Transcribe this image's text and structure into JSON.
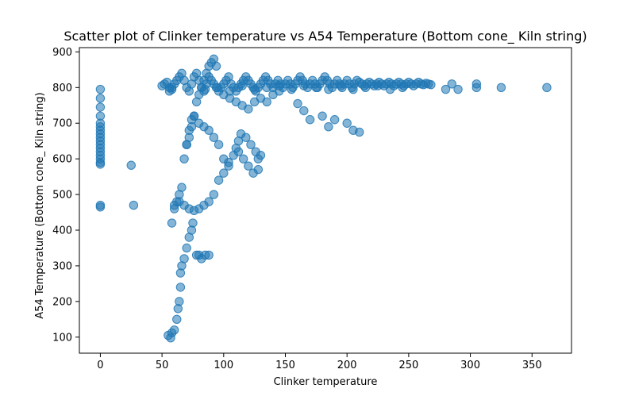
{
  "chart_data": {
    "type": "scatter",
    "title": "Scatter plot of Clinker temperature vs A54 Temperature (Bottom cone_ Kiln string)",
    "xlabel": "Clinker temperature",
    "ylabel": "A54 Temperature (Bottom cone_ Kiln string)",
    "xlim": [
      -17,
      382
    ],
    "ylim": [
      55,
      912
    ],
    "xticks": [
      0,
      50,
      100,
      150,
      200,
      250,
      300,
      350
    ],
    "yticks": [
      100,
      200,
      300,
      400,
      500,
      600,
      700,
      800,
      900
    ],
    "grid": false,
    "legend": "none",
    "marker_color": "#1f77b4",
    "marker_alpha": 0.55,
    "series": [
      {
        "points": [
          [
            0,
            465
          ],
          [
            0,
            470
          ],
          [
            0,
            585
          ],
          [
            0,
            590
          ],
          [
            0,
            600
          ],
          [
            0,
            610
          ],
          [
            0,
            620
          ],
          [
            0,
            630
          ],
          [
            0,
            640
          ],
          [
            0,
            650
          ],
          [
            0,
            660
          ],
          [
            0,
            670
          ],
          [
            0,
            680
          ],
          [
            0,
            690
          ],
          [
            0,
            700
          ],
          [
            0,
            720
          ],
          [
            0,
            745
          ],
          [
            0,
            770
          ],
          [
            0,
            795
          ],
          [
            25,
            582
          ],
          [
            27,
            470
          ],
          [
            55,
            105
          ],
          [
            57,
            98
          ],
          [
            58,
            112
          ],
          [
            60,
            120
          ],
          [
            62,
            150
          ],
          [
            63,
            180
          ],
          [
            64,
            200
          ],
          [
            65,
            240
          ],
          [
            65,
            280
          ],
          [
            66,
            300
          ],
          [
            68,
            320
          ],
          [
            70,
            350
          ],
          [
            72,
            380
          ],
          [
            74,
            400
          ],
          [
            75,
            420
          ],
          [
            78,
            330
          ],
          [
            80,
            330
          ],
          [
            82,
            320
          ],
          [
            85,
            330
          ],
          [
            88,
            330
          ],
          [
            58,
            420
          ],
          [
            60,
            460
          ],
          [
            62,
            480
          ],
          [
            64,
            500
          ],
          [
            66,
            520
          ],
          [
            68,
            600
          ],
          [
            70,
            640
          ],
          [
            72,
            680
          ],
          [
            74,
            710
          ],
          [
            76,
            720
          ],
          [
            80,
            700
          ],
          [
            84,
            690
          ],
          [
            88,
            680
          ],
          [
            92,
            660
          ],
          [
            96,
            640
          ],
          [
            100,
            600
          ],
          [
            104,
            590
          ],
          [
            60,
            470
          ],
          [
            64,
            480
          ],
          [
            68,
            470
          ],
          [
            72,
            460
          ],
          [
            76,
            455
          ],
          [
            80,
            460
          ],
          [
            84,
            470
          ],
          [
            88,
            480
          ],
          [
            92,
            500
          ],
          [
            96,
            540
          ],
          [
            100,
            560
          ],
          [
            104,
            580
          ],
          [
            108,
            610
          ],
          [
            112,
            620
          ],
          [
            116,
            600
          ],
          [
            120,
            580
          ],
          [
            124,
            560
          ],
          [
            128,
            570
          ],
          [
            130,
            610
          ],
          [
            110,
            630
          ],
          [
            112,
            650
          ],
          [
            114,
            670
          ],
          [
            118,
            660
          ],
          [
            122,
            640
          ],
          [
            126,
            620
          ],
          [
            128,
            600
          ],
          [
            70,
            640
          ],
          [
            72,
            660
          ],
          [
            74,
            690
          ],
          [
            76,
            720
          ],
          [
            78,
            760
          ],
          [
            80,
            780
          ],
          [
            82,
            800
          ],
          [
            84,
            820
          ],
          [
            86,
            840
          ],
          [
            88,
            860
          ],
          [
            90,
            870
          ],
          [
            92,
            880
          ],
          [
            94,
            860
          ],
          [
            56,
            790
          ],
          [
            58,
            800
          ],
          [
            60,
            810
          ],
          [
            62,
            820
          ],
          [
            64,
            830
          ],
          [
            66,
            840
          ],
          [
            68,
            820
          ],
          [
            70,
            800
          ],
          [
            72,
            790
          ],
          [
            74,
            810
          ],
          [
            76,
            830
          ],
          [
            78,
            840
          ],
          [
            80,
            820
          ],
          [
            82,
            800
          ],
          [
            84,
            790
          ],
          [
            86,
            810
          ],
          [
            88,
            830
          ],
          [
            90,
            820
          ],
          [
            92,
            810
          ],
          [
            94,
            800
          ],
          [
            96,
            790
          ],
          [
            98,
            800
          ],
          [
            100,
            810
          ],
          [
            102,
            820
          ],
          [
            104,
            830
          ],
          [
            106,
            810
          ],
          [
            108,
            800
          ],
          [
            110,
            790
          ],
          [
            112,
            800
          ],
          [
            114,
            810
          ],
          [
            116,
            820
          ],
          [
            118,
            830
          ],
          [
            120,
            820
          ],
          [
            122,
            810
          ],
          [
            124,
            800
          ],
          [
            126,
            790
          ],
          [
            128,
            800
          ],
          [
            130,
            810
          ],
          [
            132,
            820
          ],
          [
            134,
            830
          ],
          [
            136,
            820
          ],
          [
            138,
            810
          ],
          [
            140,
            800
          ],
          [
            142,
            810
          ],
          [
            144,
            820
          ],
          [
            146,
            810
          ],
          [
            148,
            800
          ],
          [
            150,
            810
          ],
          [
            152,
            820
          ],
          [
            154,
            810
          ],
          [
            156,
            800
          ],
          [
            158,
            810
          ],
          [
            160,
            820
          ],
          [
            162,
            830
          ],
          [
            164,
            820
          ],
          [
            166,
            810
          ],
          [
            168,
            800
          ],
          [
            170,
            810
          ],
          [
            172,
            820
          ],
          [
            174,
            810
          ],
          [
            176,
            800
          ],
          [
            178,
            810
          ],
          [
            180,
            820
          ],
          [
            182,
            830
          ],
          [
            184,
            820
          ],
          [
            186,
            810
          ],
          [
            188,
            800
          ],
          [
            190,
            810
          ],
          [
            192,
            820
          ],
          [
            194,
            810
          ],
          [
            196,
            800
          ],
          [
            198,
            810
          ],
          [
            200,
            820
          ],
          [
            202,
            810
          ],
          [
            204,
            800
          ],
          [
            206,
            810
          ],
          [
            208,
            820
          ],
          [
            210,
            815
          ],
          [
            212,
            810
          ],
          [
            214,
            805
          ],
          [
            216,
            810
          ],
          [
            218,
            815
          ],
          [
            220,
            810
          ],
          [
            222,
            805
          ],
          [
            224,
            810
          ],
          [
            226,
            815
          ],
          [
            228,
            810
          ],
          [
            230,
            805
          ],
          [
            232,
            810
          ],
          [
            234,
            815
          ],
          [
            236,
            810
          ],
          [
            238,
            805
          ],
          [
            240,
            810
          ],
          [
            242,
            815
          ],
          [
            244,
            810
          ],
          [
            246,
            805
          ],
          [
            248,
            810
          ],
          [
            250,
            815
          ],
          [
            252,
            810
          ],
          [
            254,
            805
          ],
          [
            256,
            810
          ],
          [
            258,
            815
          ],
          [
            260,
            810
          ],
          [
            262,
            808
          ],
          [
            264,
            812
          ],
          [
            266,
            810
          ],
          [
            268,
            808
          ],
          [
            100,
            780
          ],
          [
            105,
            770
          ],
          [
            110,
            760
          ],
          [
            115,
            750
          ],
          [
            120,
            740
          ],
          [
            125,
            760
          ],
          [
            130,
            770
          ],
          [
            135,
            760
          ],
          [
            140,
            780
          ],
          [
            145,
            790
          ],
          [
            160,
            755
          ],
          [
            165,
            735
          ],
          [
            170,
            710
          ],
          [
            180,
            720
          ],
          [
            185,
            690
          ],
          [
            190,
            710
          ],
          [
            200,
            700
          ],
          [
            205,
            680
          ],
          [
            210,
            675
          ],
          [
            85,
            795
          ],
          [
            95,
            800
          ],
          [
            105,
            790
          ],
          [
            115,
            805
          ],
          [
            125,
            795
          ],
          [
            135,
            800
          ],
          [
            145,
            805
          ],
          [
            155,
            795
          ],
          [
            165,
            805
          ],
          [
            175,
            800
          ],
          [
            185,
            795
          ],
          [
            195,
            805
          ],
          [
            205,
            795
          ],
          [
            215,
            800
          ],
          [
            225,
            805
          ],
          [
            235,
            795
          ],
          [
            245,
            800
          ],
          [
            280,
            795
          ],
          [
            285,
            810
          ],
          [
            290,
            795
          ],
          [
            305,
            810
          ],
          [
            305,
            800
          ],
          [
            325,
            800
          ],
          [
            362,
            800
          ],
          [
            50,
            805
          ],
          [
            52,
            810
          ],
          [
            54,
            815
          ],
          [
            56,
            800
          ],
          [
            58,
            795
          ]
        ]
      }
    ]
  }
}
